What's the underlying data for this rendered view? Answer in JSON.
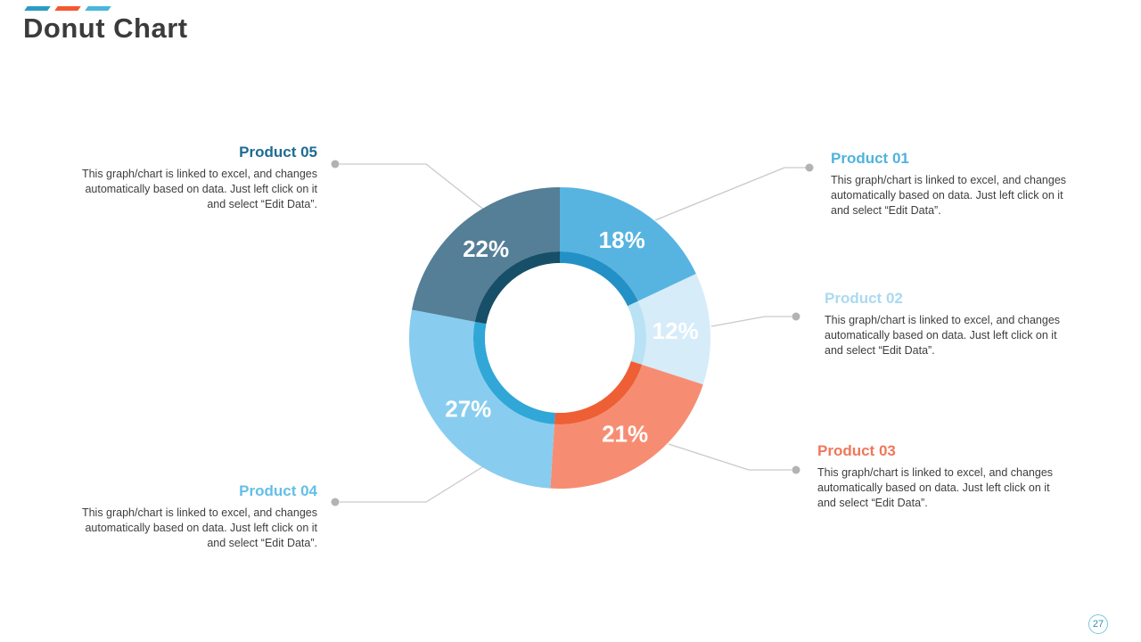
{
  "slide": {
    "title": "Donut Chart",
    "page_number": "27"
  },
  "decor": {
    "dash_colors": [
      "#2a9cc4",
      "#f4582e",
      "#49b6dc"
    ]
  },
  "shared_description": "This graph/chart is linked to excel, and changes automatically based on data. Just left click on it and select “Edit Data”.",
  "callouts": [
    {
      "title": "Product 01",
      "color": "#4fb3de"
    },
    {
      "title": "Product 02",
      "color": "#aadaef"
    },
    {
      "title": "Product 03",
      "color": "#f1765a"
    },
    {
      "title": "Product 04",
      "color": "#63bfe8"
    },
    {
      "title": "Product 05",
      "color": "#1d6c93"
    }
  ],
  "chart_data": {
    "type": "pie",
    "subtype": "donut",
    "title": "Donut Chart",
    "categories": [
      "Product 01",
      "Product 02",
      "Product 03",
      "Product 04",
      "Product 05"
    ],
    "values": [
      18,
      12,
      21,
      27,
      22
    ],
    "data_labels": [
      "18%",
      "12%",
      "21%",
      "27%",
      "22%"
    ],
    "segment_colors": [
      "#57b4e1",
      "#d6ecf9",
      "#f68d72",
      "#88cdef",
      "#557e97"
    ],
    "inner_ring_colors": [
      "#2391c6",
      "#b9e2f4",
      "#ee5f35",
      "#31a7d8",
      "#174f68"
    ],
    "start_angle_deg": 0,
    "direction": "clockwise",
    "hole_ratio": 0.5,
    "legend_position": "none",
    "label_color": "#ffffff"
  }
}
